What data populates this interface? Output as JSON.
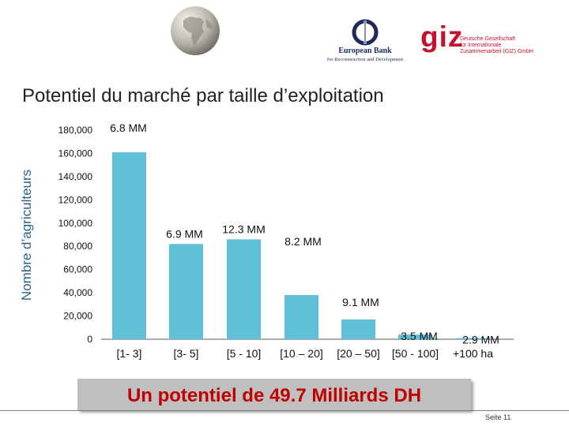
{
  "header": {
    "globe_icon": "globe-icon",
    "ebrd": {
      "icon": "ebrd-emblem-icon",
      "name": "European Bank",
      "sub": "for Reconstruction and Development"
    },
    "giz": {
      "logo": "giz",
      "text": "Deutsche Gesellschaft\nfür Internationale\nZusammenarbeit (GIZ) GmbH"
    }
  },
  "title": "Potentiel du marché par taille d’exploitation",
  "chart_data": {
    "type": "bar",
    "title": "Potentiel du marché par taille d’exploitation",
    "ylabel": "Nombre d’agriculteurs",
    "xlabel": "",
    "categories": [
      "[1- 3]",
      "[3- 5]",
      "[5 - 10]",
      "[10 – 20]",
      "[20 – 50]",
      "[50 - 100]",
      "+100 ha"
    ],
    "values": [
      161000,
      82000,
      86000,
      38000,
      17000,
      4000,
      1000
    ],
    "data_labels": [
      "6.8 MM",
      "6.9 MM",
      "12.3 MM",
      "8.2 MM",
      "9.1 MM",
      "3.5 MM",
      "2.9 MM"
    ],
    "ylim": [
      0,
      180000
    ],
    "yticks": [
      "0",
      "20,000",
      "40,000",
      "60,000",
      "80,000",
      "100,000",
      "120,000",
      "140,000",
      "160,000",
      "180,000"
    ],
    "grid": false,
    "legend": "none",
    "bar_color": "#5fc0d8"
  },
  "banner": "Un potentiel de 49.7 Milliards DH",
  "page_number": "Seite 11"
}
